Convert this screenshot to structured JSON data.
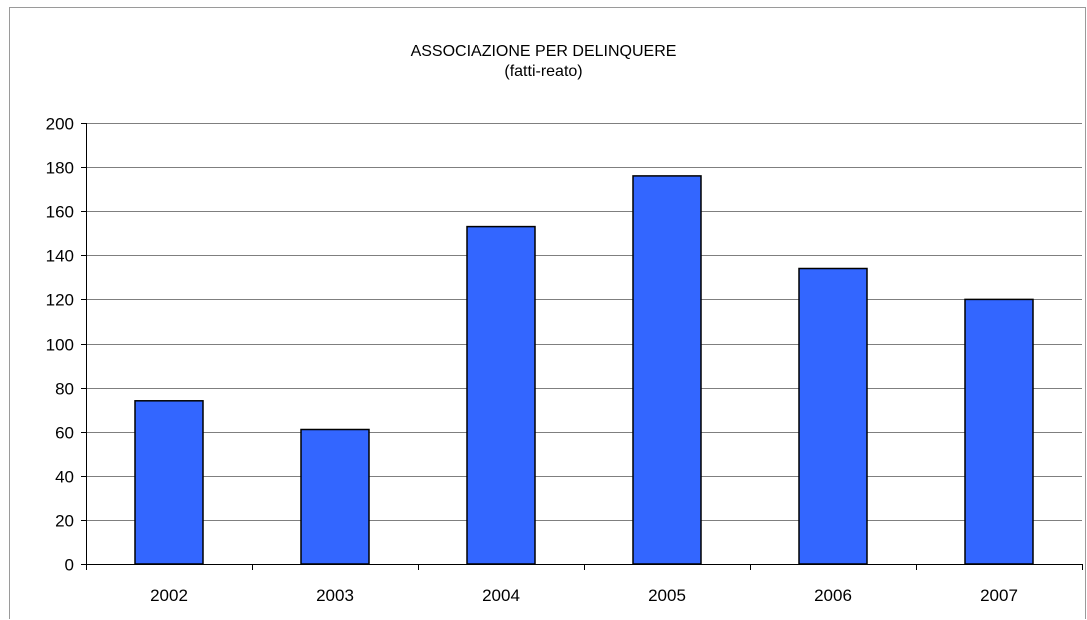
{
  "chart_data": {
    "type": "bar",
    "title": "ASSOCIAZIONE PER DELINQUERE",
    "subtitle": "(fatti-reato)",
    "xlabel": "",
    "ylabel": "",
    "categories": [
      "2002",
      "2003",
      "2004",
      "2005",
      "2006",
      "2007"
    ],
    "values": [
      74,
      61,
      153,
      176,
      134,
      120
    ],
    "ylim": [
      0,
      200
    ],
    "yticks": [
      0,
      20,
      40,
      60,
      80,
      100,
      120,
      140,
      160,
      180,
      200
    ],
    "grid": true,
    "legend": "none",
    "colors": {
      "bar": "#3366ff",
      "bar_border": "#000000",
      "grid": "#7f7f7f",
      "axis": "#000000"
    }
  }
}
